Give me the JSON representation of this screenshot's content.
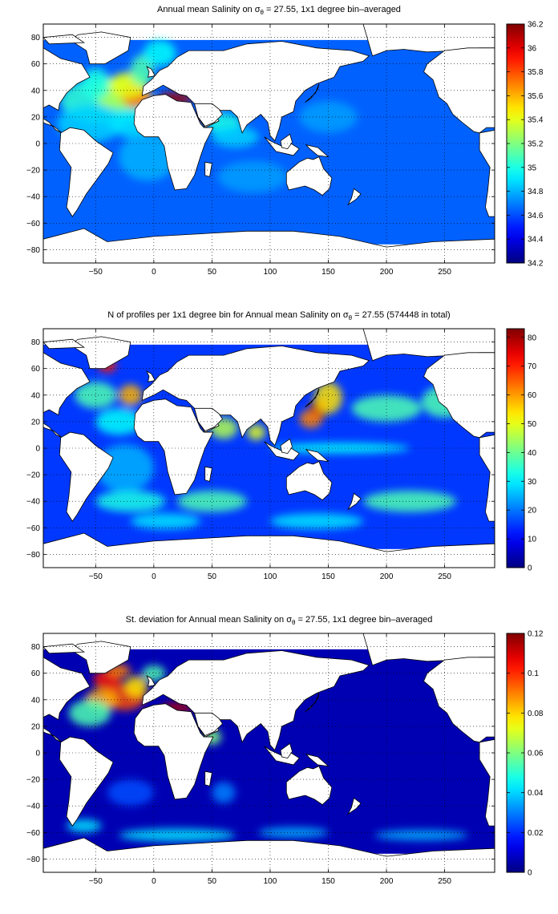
{
  "panels": [
    {
      "title_parts": {
        "prefix": "Annual mean Salinity on ",
        "sigma": "σ",
        "sub": "θ",
        "suffix": " = 27.55, 1x1 degree bin–averaged"
      },
      "xticks": [
        "−50",
        "0",
        "50",
        "100",
        "150",
        "200",
        "250"
      ],
      "yticks": [
        "80",
        "60",
        "40",
        "20",
        "0",
        "−20",
        "−40",
        "−60",
        "−80"
      ],
      "colorbar_ticks": [
        "36.2",
        "36",
        "35.8",
        "35.6",
        "35.4",
        "35.2",
        "35",
        "34.8",
        "34.6",
        "34.4",
        "34.2"
      ],
      "range": [
        34.2,
        36.2
      ],
      "background_level": 0.22
    },
    {
      "title_parts": {
        "prefix": "N of profiles per 1x1 degree bin for Annual mean Salinity on ",
        "sigma": "σ",
        "sub": "θ",
        "suffix": " = 27.55 (574448 in total)"
      },
      "xticks": [
        "−50",
        "0",
        "50",
        "100",
        "150",
        "200",
        "250"
      ],
      "yticks": [
        "80",
        "60",
        "40",
        "20",
        "0",
        "−20",
        "−40",
        "−60",
        "−80"
      ],
      "colorbar_ticks": [
        "80",
        "70",
        "60",
        "50",
        "40",
        "30",
        "20",
        "10",
        "0"
      ],
      "range": [
        0,
        83
      ],
      "background_level": 0.18
    },
    {
      "title_parts": {
        "prefix": "St. deviation for Annual mean Salinity on ",
        "sigma": "σ",
        "sub": "θ",
        "suffix": " = 27.55, 1x1 degree bin–averaged"
      },
      "xticks": [
        "−50",
        "0",
        "50",
        "100",
        "150",
        "200",
        "250"
      ],
      "yticks": [
        "80",
        "60",
        "40",
        "20",
        "0",
        "−20",
        "−40",
        "−60",
        "−80"
      ],
      "colorbar_ticks": [
        "0.12",
        "0.1",
        "0.08",
        "0.06",
        "0.04",
        "0.02",
        "0"
      ],
      "range": [
        0,
        0.12
      ],
      "background_level": 0.05
    }
  ],
  "colormap": "jet"
}
